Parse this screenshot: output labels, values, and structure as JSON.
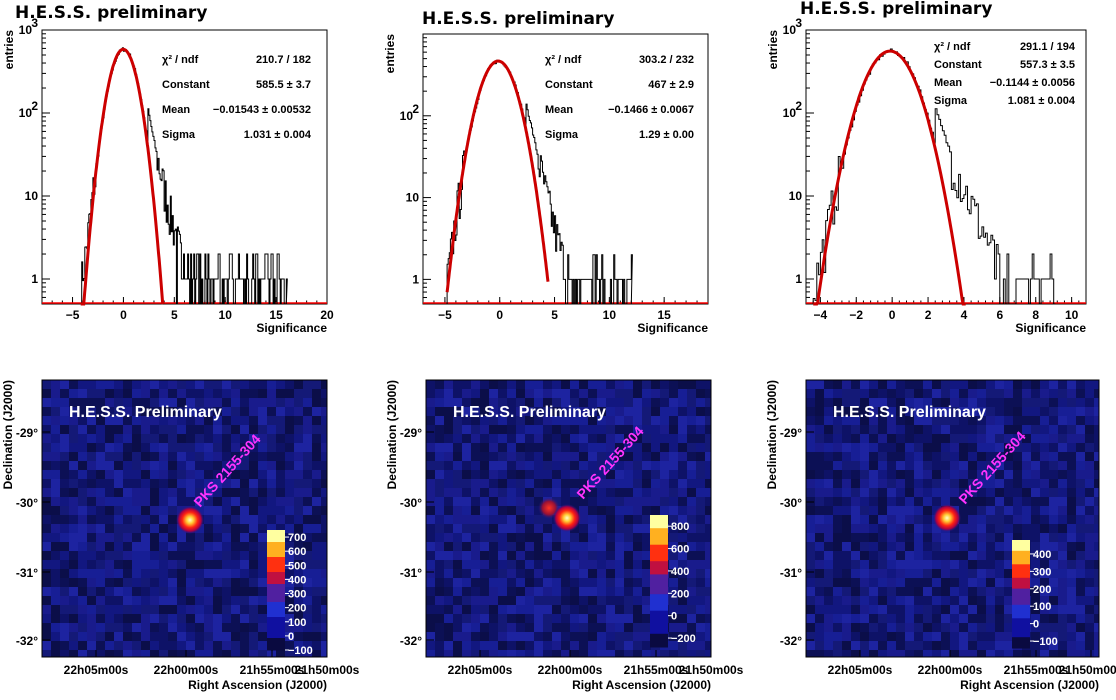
{
  "chart_data": [
    {
      "type": "histogram",
      "title": "H.E.S.S. preliminary",
      "xlabel": "Significance",
      "ylabel": "entries",
      "xlim": [
        -8,
        20
      ],
      "ylim": [
        0.5,
        1000
      ],
      "yscale": "log",
      "xticks": [
        -5,
        0,
        5,
        10,
        15,
        20
      ],
      "yticks": [
        {
          "v": 1,
          "t": "1"
        },
        {
          "v": 10,
          "t": "10"
        },
        {
          "v": 100,
          "t": "10"
        },
        {
          "v": 1000,
          "t": "10"
        }
      ],
      "ytick_exp": [
        "",
        "",
        "2",
        "3"
      ],
      "stats": [
        {
          "name": "χ² / ndf",
          "value": "210.7 / 182"
        },
        {
          "name": "Constant",
          "value": "585.5 ± 3.7"
        },
        {
          "name": "Mean",
          "value": "−0.01543 ± 0.00532"
        },
        {
          "name": "Sigma",
          "value": "1.031 ± 0.004"
        }
      ],
      "fit": {
        "constant": 585.5,
        "mean": -0.01543,
        "sigma": 1.031
      },
      "tail_end": 16,
      "gauss_cut": [
        -4.2,
        3.9
      ],
      "colors": {
        "hist": "#000000",
        "fit": "#cc0000",
        "baseline": "#ff0000"
      }
    },
    {
      "type": "histogram",
      "title": "H.E.S.S. preliminary",
      "xlabel": "Significance",
      "ylabel": "entries",
      "xlim": [
        -7,
        19
      ],
      "ylim": [
        0.5,
        1000
      ],
      "yscale": "log",
      "xticks": [
        -5,
        0,
        5,
        10,
        15
      ],
      "yticks": [
        {
          "v": 1,
          "t": "1"
        },
        {
          "v": 10,
          "t": "10"
        },
        {
          "v": 100,
          "t": "10"
        }
      ],
      "ytick_exp": [
        "",
        "",
        "2"
      ],
      "stats": [
        {
          "name": "χ² / ndf",
          "value": "303.2 / 232"
        },
        {
          "name": "Constant",
          "value": "467 ± 2.9"
        },
        {
          "name": "Mean",
          "value": "−0.1466 ± 0.0067"
        },
        {
          "name": "Sigma",
          "value": "1.29 ± 0.00"
        }
      ],
      "fit": {
        "constant": 467,
        "mean": -0.1466,
        "sigma": 1.29
      },
      "tail_end": 12,
      "gauss_cut": [
        -4.8,
        4.4
      ],
      "colors": {
        "hist": "#000000",
        "fit": "#cc0000",
        "baseline": "#ff0000"
      }
    },
    {
      "type": "histogram",
      "title": "H.E.S.S. preliminary",
      "xlabel": "Significance",
      "ylabel": "entries",
      "xlim": [
        -4.8,
        10.8
      ],
      "ylim": [
        0.5,
        1000
      ],
      "yscale": "log",
      "xticks": [
        -4,
        -2,
        0,
        2,
        4,
        6,
        8,
        10
      ],
      "yticks": [
        {
          "v": 1,
          "t": "1"
        },
        {
          "v": 10,
          "t": "10"
        },
        {
          "v": 100,
          "t": "10"
        },
        {
          "v": 1000,
          "t": "10"
        }
      ],
      "ytick_exp": [
        "",
        "",
        "2",
        "3"
      ],
      "stats": [
        {
          "name": "χ² / ndf",
          "value": "291.1 / 194"
        },
        {
          "name": "Constant",
          "value": "557.3 ± 3.5"
        },
        {
          "name": "Mean",
          "value": "−0.1144 ± 0.0056"
        },
        {
          "name": "Sigma",
          "value": "1.081 ± 0.004"
        }
      ],
      "fit": {
        "constant": 557.3,
        "mean": -0.1144,
        "sigma": 1.081
      },
      "tail_end": 9,
      "gauss_cut": [
        -4.4,
        4.1
      ],
      "colors": {
        "hist": "#000000",
        "fit": "#cc0000",
        "baseline": "#ff0000"
      }
    },
    {
      "type": "heatmap",
      "label": "H.E.S.S. Preliminary",
      "source_label": "PKS 2155-304",
      "xlabel": "Right Ascension (J2000)",
      "ylabel": "Declination (J2000)",
      "xticks": [
        "22h05m00s",
        "22h00m00s",
        "21h55m00s",
        "21h50m00s"
      ],
      "yticks": [
        "-29°",
        "-30°",
        "-31°",
        "-32°"
      ],
      "colorbar": {
        "min": -100,
        "max": 750,
        "ticks": [
          700,
          600,
          500,
          400,
          300,
          200,
          100,
          0,
          -100
        ]
      }
    },
    {
      "type": "heatmap",
      "label": "H.E.S.S. Preliminary",
      "source_label": "PKS 2155-304",
      "xlabel": "Right Ascension (J2000)",
      "ylabel": "Declination (J2000)",
      "xticks": [
        "22h05m00s",
        "22h00m00s",
        "21h55m00s",
        "21h50m00s"
      ],
      "yticks": [
        "-29°",
        "-30°",
        "-31°",
        "-32°"
      ],
      "colorbar": {
        "min": -280,
        "max": 900,
        "ticks": [
          800,
          600,
          400,
          200,
          0,
          -200
        ]
      }
    },
    {
      "type": "heatmap",
      "label": "H.E.S.S. Preliminary",
      "source_label": "PKS 2155-304",
      "xlabel": "Right Ascension (J2000)",
      "ylabel": "Declination (J2000)",
      "xticks": [
        "22h05m00s",
        "22h00m00s",
        "21h55m00s",
        "21h50m00s"
      ],
      "yticks": [
        "-29°",
        "-30°",
        "-31°",
        "-32°"
      ],
      "colorbar": {
        "min": -140,
        "max": 480,
        "ticks": [
          400,
          300,
          200,
          100,
          0,
          -100
        ]
      }
    }
  ]
}
